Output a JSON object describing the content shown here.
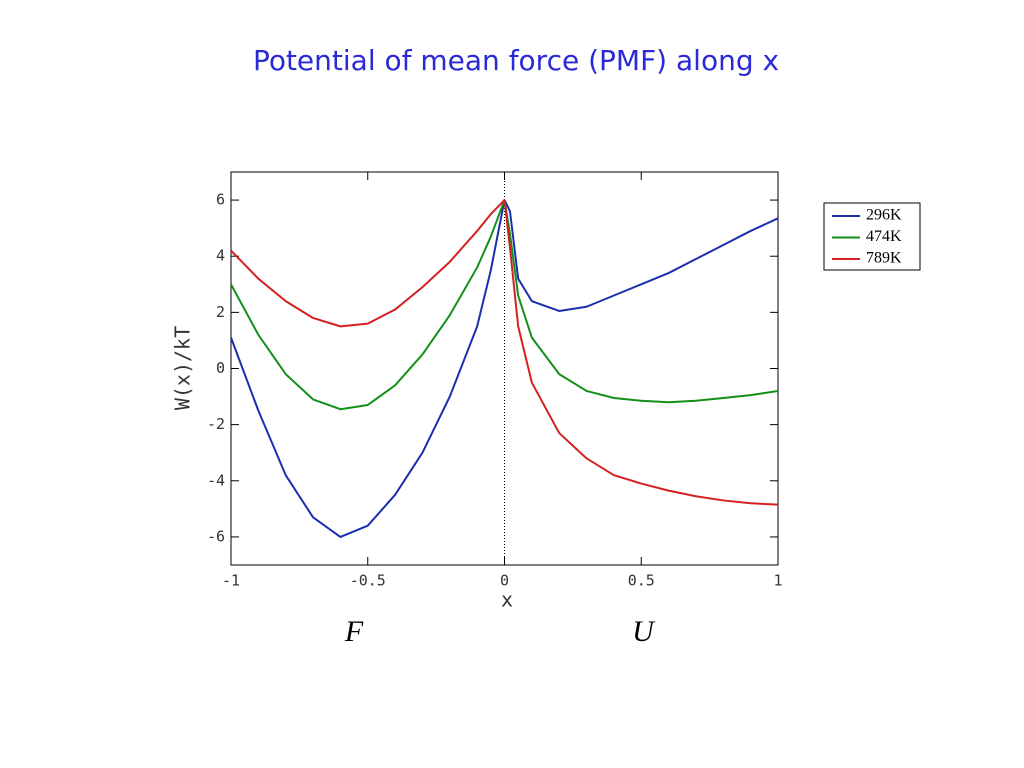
{
  "chart_data": {
    "type": "line",
    "title": "Potential of mean force (PMF) along x",
    "x_label": "x",
    "y_label": "W(x)/kT",
    "x": [
      -1,
      -0.9,
      -0.8,
      -0.7,
      -0.6,
      -0.5,
      -0.4,
      -0.3,
      -0.2,
      -0.1,
      -0.05,
      0,
      0.02,
      0.05,
      0.1,
      0.2,
      0.3,
      0.4,
      0.5,
      0.6,
      0.7,
      0.8,
      0.9,
      1
    ],
    "series": [
      {
        "name": "296K",
        "color": "#1a2fb0",
        "values": [
          1.1,
          -1.5,
          -3.8,
          -5.3,
          -6.0,
          -5.6,
          -4.5,
          -3.0,
          -1.0,
          1.5,
          3.5,
          6.0,
          5.6,
          3.2,
          2.4,
          2.05,
          2.2,
          2.6,
          3.0,
          3.4,
          3.9,
          4.4,
          4.9,
          5.35
        ]
      },
      {
        "name": "474K",
        "color": "#13901a",
        "values": [
          3.0,
          1.2,
          -0.2,
          -1.1,
          -1.45,
          -1.3,
          -0.6,
          0.5,
          1.9,
          3.6,
          4.7,
          6.0,
          4.8,
          2.6,
          1.1,
          -0.2,
          -0.8,
          -1.05,
          -1.15,
          -1.2,
          -1.15,
          -1.05,
          -0.95,
          -0.8
        ]
      },
      {
        "name": "789K",
        "color": "#d42020",
        "values": [
          4.2,
          3.2,
          2.4,
          1.8,
          1.5,
          1.6,
          2.1,
          2.9,
          3.8,
          4.9,
          5.5,
          6.0,
          4.3,
          1.5,
          -0.5,
          -2.3,
          -3.2,
          -3.8,
          -4.1,
          -4.35,
          -4.55,
          -4.7,
          -4.8,
          -4.85
        ]
      }
    ],
    "xlim": [
      -1,
      1
    ],
    "xticks": [
      -1,
      -0.5,
      0,
      0.5,
      1
    ],
    "ylim": [
      -7,
      7
    ],
    "yticks": [
      -6,
      -4,
      -2,
      0,
      2,
      4,
      6
    ],
    "legend": "outside-right",
    "annotations": [
      "F",
      "U"
    ]
  }
}
